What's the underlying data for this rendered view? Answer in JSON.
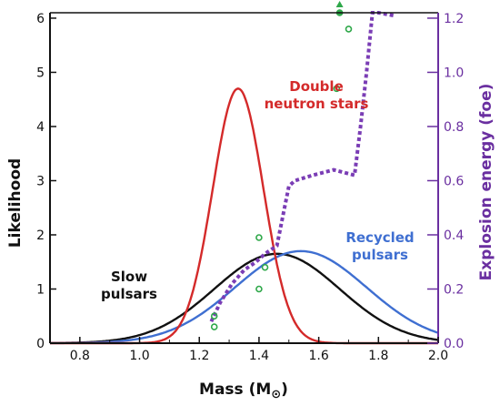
{
  "chart_data": {
    "type": "line",
    "xlabel": "Mass (M",
    "xlabel_sub": "⊙",
    "xlabel_end": ")",
    "ylabel_left": "Likelihood",
    "ylabel_right": "Explosion energy (foe)",
    "xlim": [
      0.7,
      2.0
    ],
    "ylim_left": [
      0,
      6.1
    ],
    "ylim_right": [
      0,
      1.22
    ],
    "x_ticks": [
      0.8,
      1.0,
      1.2,
      1.4,
      1.6,
      1.8,
      2.0
    ],
    "x_tick_labels": [
      "0.8",
      "1.0",
      "1.2",
      "1.4",
      "1.6",
      "1.8",
      "2.0"
    ],
    "y_ticks_left": [
      0,
      1,
      2,
      3,
      4,
      5,
      6
    ],
    "y_tick_labels_left": [
      "0",
      "1",
      "2",
      "3",
      "4",
      "5",
      "6"
    ],
    "y_ticks_right": [
      0.0,
      0.2,
      0.4,
      0.6,
      0.8,
      1.0,
      1.2
    ],
    "y_tick_labels_right": [
      "0.0",
      "0.2",
      "0.4",
      "0.6",
      "0.8",
      "1.0",
      "1.2"
    ],
    "series": [
      {
        "name": "Double\nneutron stars",
        "color": "#d42a2a",
        "kind": "gaussian",
        "mean": 1.33,
        "sigma": 0.085,
        "peak": 4.7
      },
      {
        "name": "Slow\npulsars",
        "color": "#111111",
        "kind": "gaussian",
        "mean": 1.46,
        "sigma": 0.21,
        "peak": 1.65
      },
      {
        "name": "Recycled\npulsars",
        "color": "#3f6fd1",
        "kind": "gaussian",
        "mean": 1.54,
        "sigma": 0.22,
        "peak": 1.7
      }
    ],
    "explosion_energy_curve": {
      "color": "#7a3db5",
      "axis": "right",
      "x": [
        1.24,
        1.27,
        1.31,
        1.35,
        1.39,
        1.42,
        1.46,
        1.5,
        1.52,
        1.58,
        1.65,
        1.72,
        1.74,
        1.76,
        1.78,
        1.8,
        1.85
      ],
      "y": [
        0.08,
        0.15,
        0.22,
        0.27,
        0.3,
        0.33,
        0.36,
        0.58,
        0.6,
        0.62,
        0.64,
        0.62,
        0.8,
        1.0,
        1.22,
        1.22,
        1.21
      ]
    },
    "explosion_energy_points": {
      "color": "#2fa84a",
      "axis": "right",
      "x": [
        1.25,
        1.25,
        1.4,
        1.4,
        1.42,
        1.66,
        1.67,
        1.7
      ],
      "y": [
        0.06,
        0.1,
        0.2,
        0.39,
        0.28,
        0.94,
        1.22,
        1.16
      ]
    },
    "arrow_marker": {
      "x": 1.67,
      "y": 1.22,
      "color": "#2fa84a"
    }
  }
}
